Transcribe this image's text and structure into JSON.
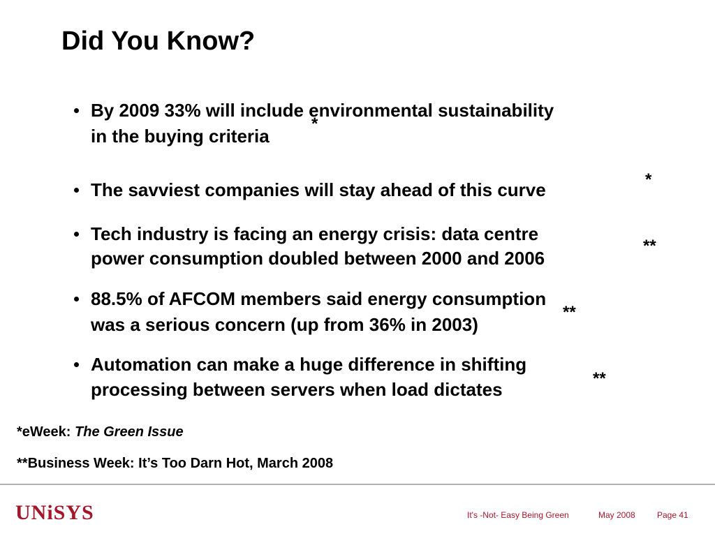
{
  "title": "Did You Know?",
  "bullets": [
    {
      "lines": [
        "By 2009 33% will include environmental sustainability",
        "in the buying criteria"
      ],
      "mark": "*"
    },
    {
      "lines": [
        "The savviest companies will stay ahead of this curve"
      ],
      "mark": "*"
    },
    {
      "lines": [
        "Tech industry is facing an energy crisis: data centre",
        "power consumption doubled between 2000 and 2006"
      ],
      "mark": "**"
    },
    {
      "lines": [
        "88.5% of AFCOM members said energy consumption",
        "was a serious concern (up from 36% in 2003)"
      ],
      "mark": "**"
    },
    {
      "lines": [
        "Automation can make a huge difference in shifting",
        "processing between servers when load dictates"
      ],
      "mark": "**"
    }
  ],
  "footnotes": [
    {
      "prefix": "*eWeek:",
      "source": "The Green Issue"
    },
    {
      "text": "**Business Week: It’s Too Darn Hot, March 2008"
    }
  ],
  "footer": {
    "logo": "UNiSYS",
    "presentation": "It's -Not- Easy Being Green",
    "date": "May 2008",
    "page": "Page 41"
  }
}
